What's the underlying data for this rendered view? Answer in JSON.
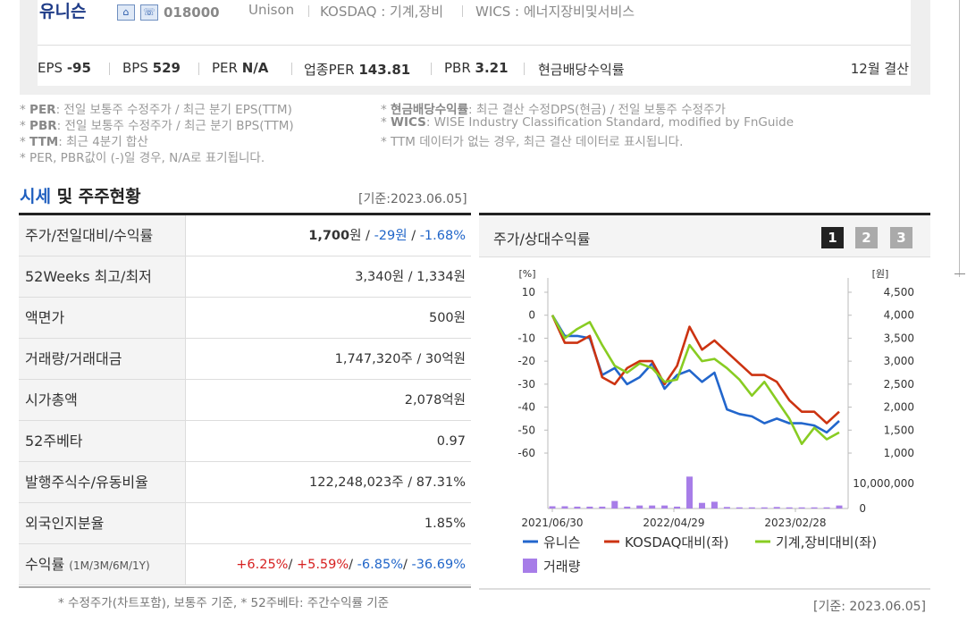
{
  "company": {
    "name": "유니슨",
    "code": "018000",
    "en_name": "Unison",
    "market": "KOSDAQ : 기계,장비",
    "wics": "WICS : 에너지장비및서비스",
    "icons": [
      "home-icon",
      "ir-icon"
    ]
  },
  "metrics": [
    {
      "label": "EPS",
      "value": "-95"
    },
    {
      "label": "BPS",
      "value": "529"
    },
    {
      "label": "PER",
      "value": "N/A"
    },
    {
      "label": "업종PER",
      "value": "143.81"
    },
    {
      "label": "PBR",
      "value": "3.21"
    },
    {
      "label": "현금배당수익률",
      "value": ""
    }
  ],
  "settlement": "12월 결산",
  "notes": {
    "per_term": "PER",
    "per_text": ": 전일 보통주 수정주가 / 최근 분기 EPS(TTM)",
    "pbr_term": "PBR",
    "pbr_text": ": 전일 보통주 수정주가 / 최근 분기 BPS(TTM)",
    "ttm_term": "TTM",
    "ttm_text": ": 최근 4분기 합산",
    "na_text": "PER, PBR값이 (-)일 경우, N/A로 표기됩니다.",
    "div_term": "현금배당수익률",
    "div_text": ": 최근 결산 수정DPS(현금) / 전일 보통주 수정주가",
    "wics_term": "WICS",
    "wics_text": ": WISE Industry Classification Standard, modified by FnGuide",
    "ttm_missing": "TTM 데이터가 없는 경우, 최근 결산 데이터로 표시됩니다."
  },
  "section": {
    "title_blue": "시세",
    "title_rest": " 및 주주현황",
    "date": "[기준:2023.06.05]"
  },
  "stats": {
    "price_label": "주가/전일대비/수익률",
    "price": "1,700",
    "price_unit": "원 / ",
    "change": "-29원",
    "change_sep": " / ",
    "change_pct": "-1.68%",
    "w52_label": "52Weeks 최고/최저",
    "w52_value": "3,340원 / 1,334원",
    "par_label": "액면가",
    "par_value": "500원",
    "vol_label": "거래량/거래대금",
    "vol_value": "1,747,320주 / 30억원",
    "cap_label": "시가총액",
    "cap_value": "2,078억원",
    "beta_label": "52주베타",
    "beta_value": "0.97",
    "shares_label": "발행주식수/유동비율",
    "shares_value": "122,248,023주 / 87.31%",
    "foreign_label": "외국인지분율",
    "foreign_value": "1.85%",
    "ret_label": "수익률",
    "ret_periods": "(1M/3M/6M/1Y)",
    "ret_1m": "+6.25%",
    "ret_3m": "+5.59%",
    "ret_6m": "-6.85%",
    "ret_1y": "-36.69%",
    "ret_sep": "/ "
  },
  "footnote": "* 수정주가(차트포함), 보통주 기준, * 52주베타: 주간수익률 기준",
  "chart_panel": {
    "title": "주가/상대수익률",
    "pages": [
      "1",
      "2",
      "3"
    ],
    "date": "[기준: 2023.06.05]"
  },
  "chart_data": {
    "type": "line",
    "left_axis_label": "[%]",
    "right_axis_label": "[원]",
    "left_ticks": [
      "10",
      "0",
      "-10",
      "-20",
      "-30",
      "-40",
      "-50",
      "-60"
    ],
    "right_ticks": [
      "4,500",
      "4,000",
      "3,500",
      "3,000",
      "2,500",
      "2,000",
      "1,500",
      "1,000"
    ],
    "volume_ticks": [
      "10,000,000",
      "0"
    ],
    "x_labels": [
      "2021/06/30",
      "2022/04/29",
      "2023/02/28"
    ],
    "left_ylim": [
      -60,
      10
    ],
    "right_ylim": [
      1000,
      4500
    ],
    "colors": {
      "unison": "#2266cc",
      "kosdaq": "#cc3311",
      "machinery": "#88cc22",
      "volume": "#a77de8"
    },
    "series": [
      {
        "name": "유니슨",
        "values": [
          0,
          -9,
          -9,
          -10,
          -26,
          -23,
          -30,
          -27,
          -21,
          -32,
          -26,
          -24,
          -29,
          -25,
          -41,
          -43,
          -44,
          -47,
          -45,
          -47,
          -47,
          -48,
          -51,
          -46
        ]
      },
      {
        "name": "KOSDAQ대비(좌)",
        "values": [
          0,
          -12,
          -12,
          -9,
          -27,
          -30,
          -23,
          -20,
          -20,
          -30,
          -22,
          -5,
          -15,
          -11,
          -16,
          -21,
          -26,
          -26,
          -29,
          -37,
          -42,
          -42,
          -47,
          -42
        ]
      },
      {
        "name": "기계,장비대비(좌)",
        "values": [
          0,
          -10,
          -6,
          -3,
          -13,
          -22,
          -25,
          -21,
          -23,
          -29,
          -28,
          -13,
          -20,
          -19,
          -23,
          -28,
          -35,
          -29,
          -37,
          -45,
          -56,
          -49,
          -54,
          -51
        ]
      }
    ],
    "volume": {
      "name": "거래량",
      "values": [
        0.6,
        0.6,
        0.5,
        0.5,
        0.5,
        2.0,
        0.5,
        0.8,
        0.8,
        0.8,
        0.5,
        8.5,
        1.5,
        1.8,
        0.4,
        0.3,
        0.3,
        0.3,
        0.4,
        0.3,
        0.3,
        0.3,
        0.3,
        0.8
      ]
    }
  }
}
